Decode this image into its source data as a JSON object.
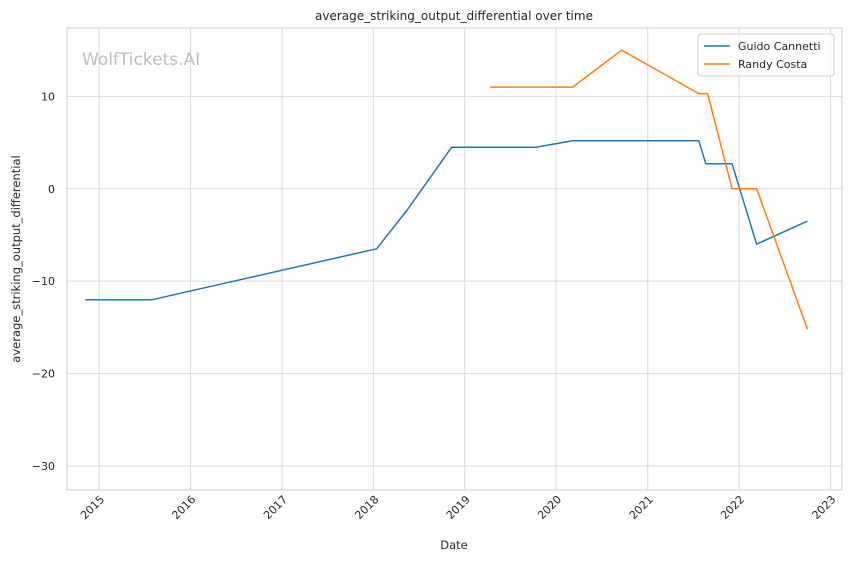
{
  "chart_data": {
    "type": "line",
    "title": "average_striking_output_differential over time",
    "xlabel": "Date",
    "ylabel": "average_striking_output_differential",
    "watermark": "WolfTickets.AI",
    "x_ticks": [
      "2015",
      "2016",
      "2017",
      "2018",
      "2019",
      "2020",
      "2021",
      "2022",
      "2023"
    ],
    "y_ticks": [
      10,
      0,
      -10,
      -20,
      -30
    ],
    "xlim": [
      "2014-08-26",
      "2023-02-16"
    ],
    "ylim": [
      -32.6,
      17.4
    ],
    "grid": true,
    "legend_position": "top-right",
    "series": [
      {
        "name": "Guido Cannetti",
        "color": "#1f77b4",
        "points": [
          [
            "2014-11-08",
            -12.0
          ],
          [
            "2015-08-01",
            -12.0
          ],
          [
            "2018-01-14",
            -6.5
          ],
          [
            "2018-05-19",
            -2.2
          ],
          [
            "2018-11-10",
            4.5
          ],
          [
            "2019-10-12",
            4.5
          ],
          [
            "2020-03-07",
            5.2
          ],
          [
            "2021-07-24",
            5.2
          ],
          [
            "2021-08-21",
            2.7
          ],
          [
            "2021-12-04",
            2.7
          ],
          [
            "2022-03-12",
            -6.0
          ],
          [
            "2022-10-01",
            -3.5
          ]
        ]
      },
      {
        "name": "Randy Costa",
        "color": "#ff7f0e",
        "points": [
          [
            "2019-04-13",
            11.0
          ],
          [
            "2020-03-07",
            11.0
          ],
          [
            "2020-09-19",
            15.0
          ],
          [
            "2021-07-24",
            10.3
          ],
          [
            "2021-08-28",
            10.3
          ],
          [
            "2021-12-04",
            0.0
          ],
          [
            "2022-03-12",
            0.0
          ],
          [
            "2022-10-01",
            -15.2
          ]
        ]
      }
    ]
  }
}
